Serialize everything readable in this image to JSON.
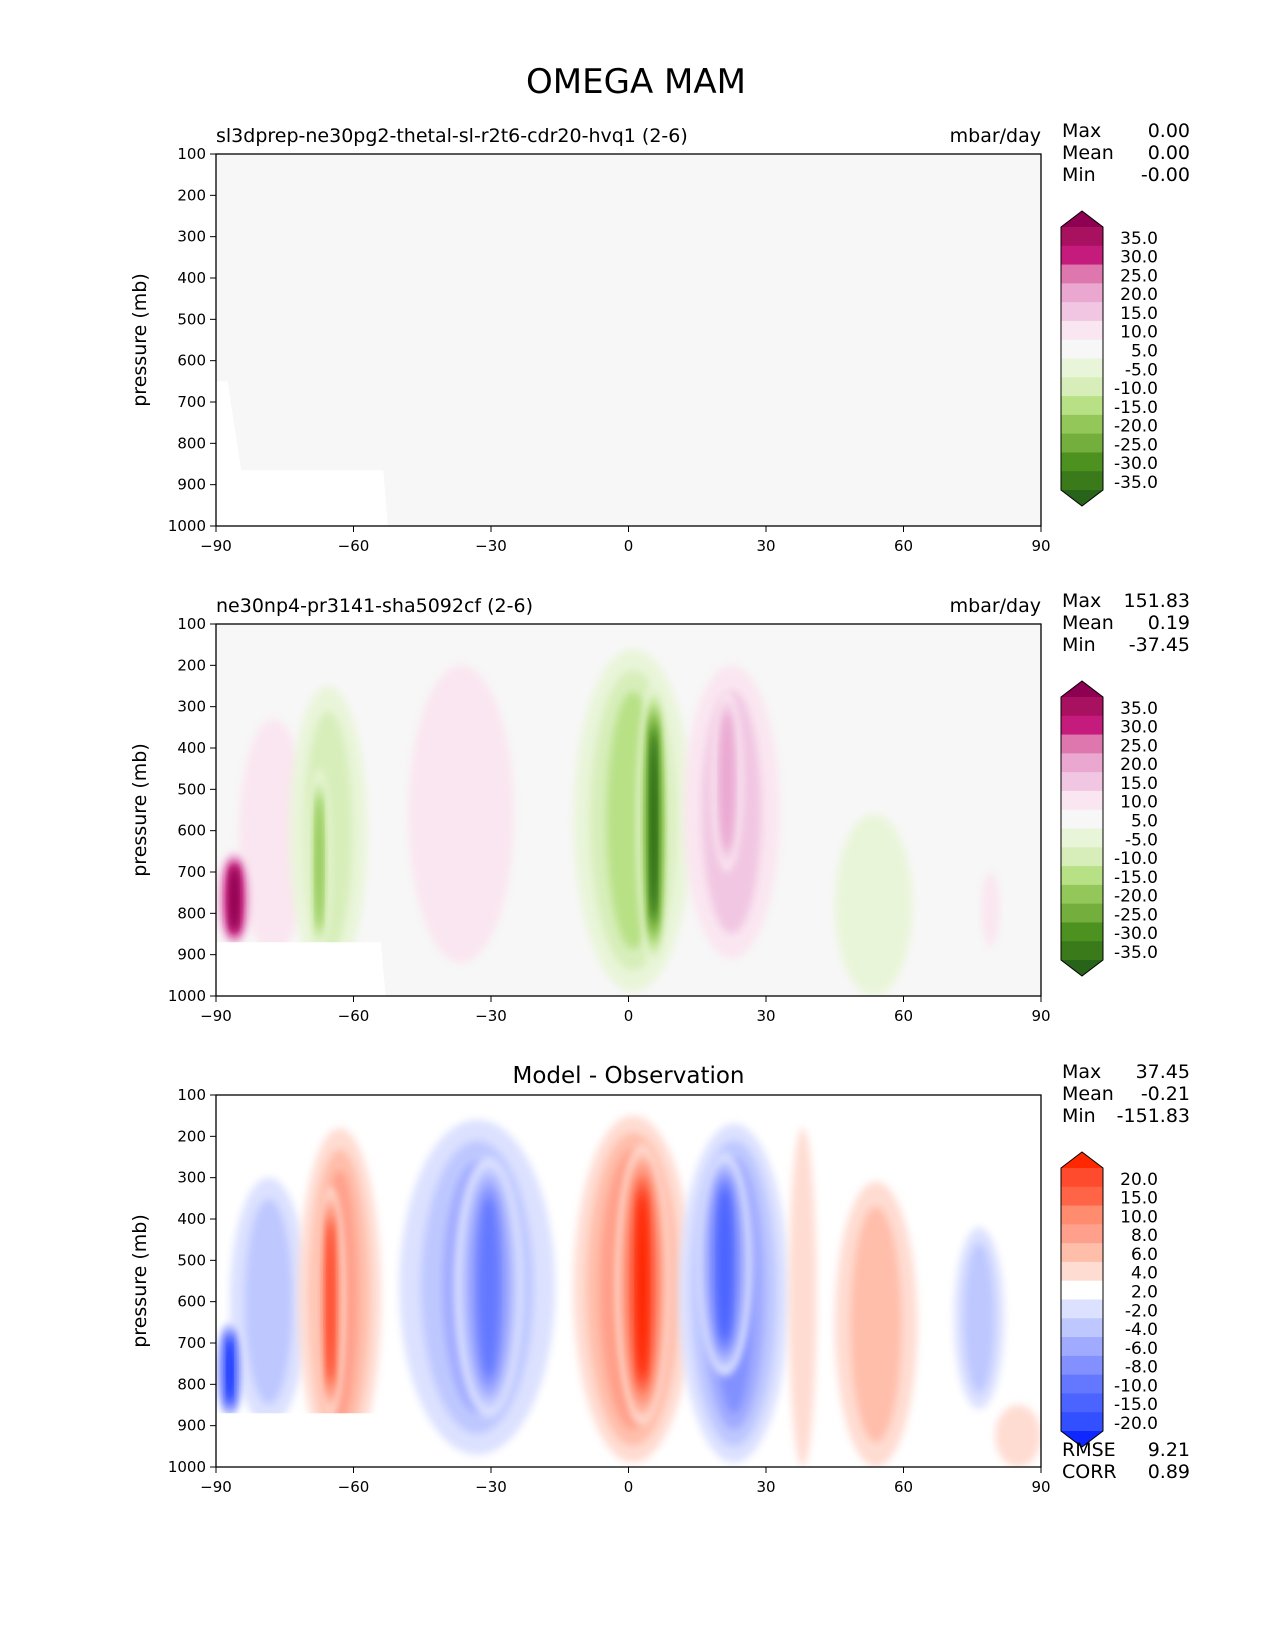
{
  "title": "OMEGA MAM",
  "chart_data": [
    {
      "type": "contour",
      "panel": "test",
      "title": "sl3dprep-ne30pg2-thetal-sl-r2t6-cdr20-hvq1 (2-6)",
      "units": "mbar/day",
      "xlabel": "",
      "ylabel": "pressure (mb)",
      "xlim": [
        -90,
        90
      ],
      "ylim": [
        1000,
        100
      ],
      "xticks": [
        "−90",
        "−60",
        "−30",
        "0",
        "30",
        "60",
        "90"
      ],
      "xtick_values": [
        -90,
        -60,
        -30,
        0,
        30,
        60,
        90
      ],
      "yticks": [
        "100",
        "200",
        "300",
        "400",
        "500",
        "600",
        "700",
        "800",
        "900",
        "1000"
      ],
      "ytick_values": [
        100,
        200,
        300,
        400,
        500,
        600,
        700,
        800,
        900,
        1000
      ],
      "stats": {
        "max_label": "Max",
        "max": "0.00",
        "mean_label": "Mean",
        "mean": "0.00",
        "min_label": "Min",
        "min": "-0.00"
      },
      "colorbar": {
        "labels": [
          "35.0",
          "30.0",
          "25.0",
          "20.0",
          "15.0",
          "10.0",
          "5.0",
          "-5.0",
          "-10.0",
          "-15.0",
          "-20.0",
          "-25.0",
          "-30.0",
          "-35.0"
        ],
        "colors": [
          "#8e0152",
          "#a8115f",
          "#c51b7d",
          "#de77ae",
          "#eaa8d1",
          "#f1c6e2",
          "#fae6f0",
          "#f7f7f7",
          "#e9f5d9",
          "#d7eeba",
          "#b8e186",
          "#93c75a",
          "#74ae3c",
          "#4d9221",
          "#3a7a1a",
          "#276419"
        ]
      },
      "field": {
        "background": "#f7f7f7",
        "note": "near-zero field, slight missing region below ~870 mb near -85 to -53"
      }
    },
    {
      "type": "contour",
      "panel": "reference",
      "title": "ne30np4-pr3141-sha5092cf (2-6)",
      "units": "mbar/day",
      "xlabel": "",
      "ylabel": "pressure (mb)",
      "xlim": [
        -90,
        90
      ],
      "ylim": [
        1000,
        100
      ],
      "xticks": [
        "−90",
        "−60",
        "−30",
        "0",
        "30",
        "60",
        "90"
      ],
      "xtick_values": [
        -90,
        -60,
        -30,
        0,
        30,
        60,
        90
      ],
      "yticks": [
        "100",
        "200",
        "300",
        "400",
        "500",
        "600",
        "700",
        "800",
        "900",
        "1000"
      ],
      "ytick_values": [
        100,
        200,
        300,
        400,
        500,
        600,
        700,
        800,
        900,
        1000
      ],
      "stats": {
        "max_label": "Max",
        "max": "151.83",
        "mean_label": "Mean",
        "mean": "0.19",
        "min_label": "Min",
        "min": "-37.45"
      },
      "colorbar": {
        "labels": [
          "35.0",
          "30.0",
          "25.0",
          "20.0",
          "15.0",
          "10.0",
          "5.0",
          "-5.0",
          "-10.0",
          "-15.0",
          "-20.0",
          "-25.0",
          "-30.0",
          "-35.0"
        ],
        "colors": [
          "#8e0152",
          "#a8115f",
          "#c51b7d",
          "#de77ae",
          "#eaa8d1",
          "#f1c6e2",
          "#fae6f0",
          "#f7f7f7",
          "#e9f5d9",
          "#d7eeba",
          "#b8e186",
          "#93c75a",
          "#74ae3c",
          "#4d9221",
          "#3a7a1a",
          "#276419"
        ]
      },
      "features": [
        {
          "lat_min": -85,
          "lat_max": -70,
          "p_top": 330,
          "p_bot": 900,
          "value": 8
        },
        {
          "lat_min": -90,
          "lat_max": -82,
          "p_top": 650,
          "p_bot": 880,
          "value": 40
        },
        {
          "lat_min": -74,
          "lat_max": -57,
          "p_top": 250,
          "p_bot": 960,
          "value": -10
        },
        {
          "lat_min": -70,
          "lat_max": -65,
          "p_top": 450,
          "p_bot": 900,
          "value": -22
        },
        {
          "lat_min": -48,
          "lat_max": -25,
          "p_top": 200,
          "p_bot": 920,
          "value": 6
        },
        {
          "lat_min": -12,
          "lat_max": 14,
          "p_top": 160,
          "p_bot": 990,
          "value": -15
        },
        {
          "lat_min": 2,
          "lat_max": 9,
          "p_top": 240,
          "p_bot": 930,
          "value": -35
        },
        {
          "lat_min": 12,
          "lat_max": 33,
          "p_top": 200,
          "p_bot": 910,
          "value": 10
        },
        {
          "lat_min": 18,
          "lat_max": 25,
          "p_top": 260,
          "p_bot": 700,
          "value": 18
        },
        {
          "lat_min": 45,
          "lat_max": 62,
          "p_top": 560,
          "p_bot": 1000,
          "value": -6
        },
        {
          "lat_min": 77,
          "lat_max": 81,
          "p_top": 700,
          "p_bot": 880,
          "value": 6
        }
      ]
    },
    {
      "type": "contour",
      "panel": "difference",
      "title": "Model - Observation",
      "units": "",
      "xlabel": "",
      "ylabel": "pressure (mb)",
      "xlim": [
        -90,
        90
      ],
      "ylim": [
        1000,
        100
      ],
      "xticks": [
        "−90",
        "−60",
        "−30",
        "0",
        "30",
        "60",
        "90"
      ],
      "xtick_values": [
        -90,
        -60,
        -30,
        0,
        30,
        60,
        90
      ],
      "yticks": [
        "100",
        "200",
        "300",
        "400",
        "500",
        "600",
        "700",
        "800",
        "900",
        "1000"
      ],
      "ytick_values": [
        100,
        200,
        300,
        400,
        500,
        600,
        700,
        800,
        900,
        1000
      ],
      "stats": {
        "max_label": "Max",
        "max": "37.45",
        "mean_label": "Mean",
        "mean": "-0.21",
        "min_label": "Min",
        "min": "-151.83"
      },
      "extra_stats": {
        "rmse_label": "RMSE",
        "rmse": "9.21",
        "corr_label": "CORR",
        "corr": "0.89"
      },
      "colorbar": {
        "labels": [
          "20.0",
          "15.0",
          "10.0",
          "8.0",
          "6.0",
          "4.0",
          "2.0",
          "-2.0",
          "-4.0",
          "-6.0",
          "-8.0",
          "-10.0",
          "-15.0",
          "-20.0"
        ],
        "colors": [
          "#ff2800",
          "#ff4b2d",
          "#ff6446",
          "#ff8c6e",
          "#ffa08c",
          "#ffbeaa",
          "#ffdcd2",
          "#ffffff",
          "#dce1ff",
          "#bec8ff",
          "#a0aaff",
          "#8291ff",
          "#6478ff",
          "#4b64ff",
          "#3250ff",
          "#0f28ff"
        ]
      },
      "features": [
        {
          "lat_min": -87,
          "lat_max": -70,
          "p_top": 300,
          "p_bot": 900,
          "value": -4
        },
        {
          "lat_min": -90,
          "lat_max": -84,
          "p_top": 650,
          "p_bot": 880,
          "value": -25
        },
        {
          "lat_min": -72,
          "lat_max": -54,
          "p_top": 180,
          "p_bot": 1000,
          "value": 6
        },
        {
          "lat_min": -68,
          "lat_max": -62,
          "p_top": 320,
          "p_bot": 880,
          "value": 15
        },
        {
          "lat_min": -50,
          "lat_max": -16,
          "p_top": 160,
          "p_bot": 970,
          "value": -6
        },
        {
          "lat_min": -38,
          "lat_max": -23,
          "p_top": 250,
          "p_bot": 880,
          "value": -12
        },
        {
          "lat_min": -12,
          "lat_max": 14,
          "p_top": 150,
          "p_bot": 990,
          "value": 8
        },
        {
          "lat_min": -3,
          "lat_max": 9,
          "p_top": 220,
          "p_bot": 900,
          "value": 22
        },
        {
          "lat_min": 11,
          "lat_max": 35,
          "p_top": 170,
          "p_bot": 990,
          "value": -8
        },
        {
          "lat_min": 15,
          "lat_max": 27,
          "p_top": 240,
          "p_bot": 780,
          "value": -16
        },
        {
          "lat_min": 35,
          "lat_max": 41,
          "p_top": 180,
          "p_bot": 1000,
          "value": 3
        },
        {
          "lat_min": 45,
          "lat_max": 63,
          "p_top": 310,
          "p_bot": 1000,
          "value": 5
        },
        {
          "lat_min": 71,
          "lat_max": 82,
          "p_top": 420,
          "p_bot": 860,
          "value": -4
        },
        {
          "lat_min": 80,
          "lat_max": 90,
          "p_top": 850,
          "p_bot": 1000,
          "value": 3
        }
      ]
    }
  ]
}
